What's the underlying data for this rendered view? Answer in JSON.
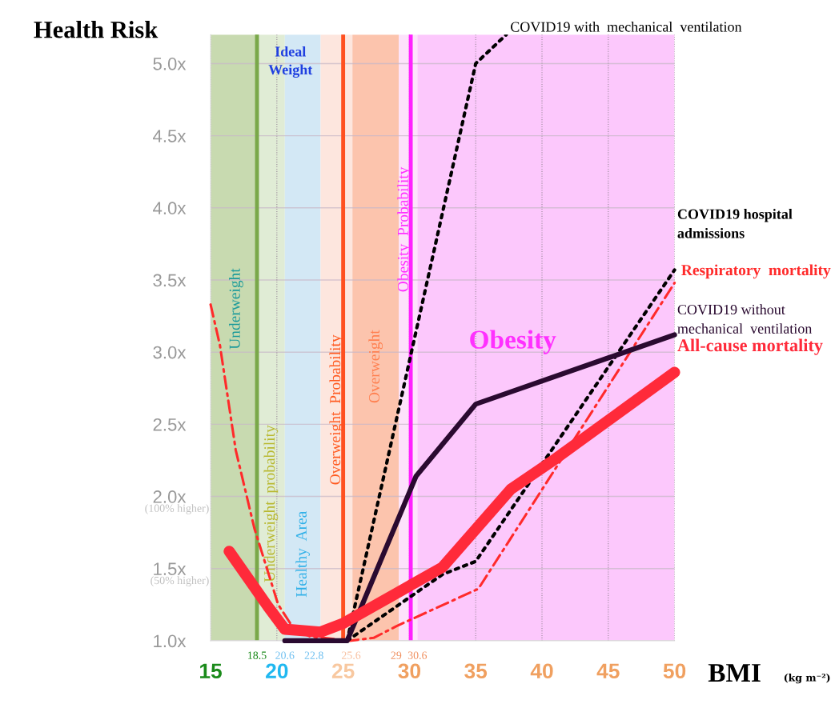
{
  "chart_data": {
    "type": "line",
    "title": "Health Risk",
    "xlabel": "BMI (kg m⁻²)",
    "xlim": [
      15,
      50
    ],
    "ylim": [
      1.0,
      5.2
    ],
    "xticks": [
      15,
      20,
      25,
      30,
      35,
      40,
      45,
      50
    ],
    "yticks": [
      {
        "value": 1.0,
        "label": "1.0x"
      },
      {
        "value": 1.5,
        "label": "1.5x"
      },
      {
        "value": 2.0,
        "label": "2.0x"
      },
      {
        "value": 2.5,
        "label": "2.5x"
      },
      {
        "value": 3.0,
        "label": "3.0x"
      },
      {
        "value": 3.5,
        "label": "3.5x"
      },
      {
        "value": 4.0,
        "label": "4.0x"
      },
      {
        "value": 4.5,
        "label": "4.5x"
      },
      {
        "value": 5.0,
        "label": "5.0x"
      }
    ],
    "grid": true,
    "bands": [
      {
        "axis": "x",
        "from": 15,
        "to": 18.5,
        "label": "Underweight",
        "color": "#c8dab0"
      },
      {
        "axis": "x",
        "from": 18.5,
        "to": 20.6,
        "label": "Underweight  probability",
        "color": "#e0ecd5"
      },
      {
        "axis": "x",
        "from": 20.6,
        "to": 23.3,
        "label": "Healthy  Area",
        "color": "#d3e8f5"
      },
      {
        "axis": "x",
        "from": 23.3,
        "to": 25.7,
        "label": "Overweight  Probability",
        "color": "#fde6de"
      },
      {
        "axis": "x",
        "from": 25.7,
        "to": 29.2,
        "label": "Overweight",
        "color": "#fcc4ad"
      },
      {
        "axis": "x",
        "from": 29.2,
        "to": 30.6,
        "label": "Obesity  Probability",
        "color": "#fde2fb"
      },
      {
        "axis": "x",
        "from": 30.6,
        "to": 50,
        "label": "Obesity",
        "color": "#fcc8fc"
      }
    ],
    "ref_lines": [
      {
        "axis": "x",
        "value": 18.5,
        "color": "#7aa84a"
      },
      {
        "axis": "x",
        "value": 25,
        "color": "#ff5020"
      },
      {
        "axis": "x",
        "value": 30.1,
        "color": "#ff20ff"
      }
    ],
    "annotations": [
      "Ideal\nWeight",
      "(100% higher)",
      "(50% higher)",
      {
        "text": "18.5",
        "x": 18.5,
        "y": 1.0
      },
      {
        "text": "20.6",
        "x": 20.6,
        "y": 1.0
      },
      {
        "text": "22.8",
        "x": 22.8,
        "y": 1.0
      },
      {
        "text": "25.6",
        "x": 25.6,
        "y": 1.0
      },
      {
        "text": "29",
        "x": 29,
        "y": 1.0
      },
      {
        "text": "30.6",
        "x": 30.6,
        "y": 1.0
      }
    ],
    "series": [
      {
        "name": "Respiratory  mortality",
        "color": "#ff2a2a",
        "line_style": "dashed",
        "x": [
          15,
          15.7,
          16.9,
          18.3,
          20.1,
          21.3,
          22.5,
          25.5,
          27.3,
          29,
          35.2,
          50
        ],
        "values": [
          3.33,
          3.05,
          2.32,
          1.78,
          1.25,
          1.08,
          1.03,
          1.0,
          1.02,
          1.1,
          1.36,
          3.48
        ]
      },
      {
        "name": "COVID19 hospital\nadmissions",
        "color": "#000000",
        "line_style": "dotted",
        "x": [
          25.3,
          32.5,
          35,
          50
        ],
        "values": [
          1.0,
          1.46,
          1.55,
          3.57
        ]
      },
      {
        "name": "COVID19 with  mechanical  ventilation",
        "color": "#000000",
        "line_style": "dotted",
        "x": [
          25.3,
          35,
          37.3
        ],
        "values": [
          1.0,
          5.0,
          5.2
        ]
      },
      {
        "name": "COVID19 without\nmechanical  ventilation",
        "color": "#2a0a30",
        "line_style": "solid",
        "x": [
          20.6,
          25.3,
          30.5,
          35,
          50
        ],
        "values": [
          1.0,
          1.0,
          2.14,
          2.64,
          3.12
        ]
      },
      {
        "name": "All-cause mortality",
        "color": "#ff2a3a",
        "line_style": "solid",
        "x": [
          16.4,
          19.3,
          20.6,
          23.3,
          25,
          32.5,
          37.65,
          41,
          50
        ],
        "values": [
          1.62,
          1.24,
          1.08,
          1.06,
          1.12,
          1.51,
          2.05,
          2.26,
          2.86
        ]
      }
    ]
  }
}
